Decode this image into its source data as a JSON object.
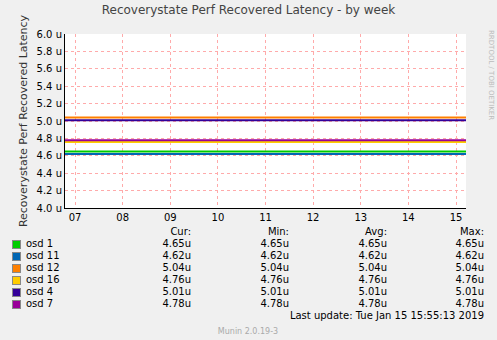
{
  "chart_data": {
    "type": "line",
    "title": "Recoverystate Perf Recovered Latency - by week",
    "y_label": "Recoverystate Perf Recovered Latency",
    "x": [
      6.79,
      15.21
    ],
    "xlim": [
      6.79,
      15.21
    ],
    "xticks": [
      {
        "value": 7,
        "label": "07"
      },
      {
        "value": 8,
        "label": "08"
      },
      {
        "value": 9,
        "label": "09"
      },
      {
        "value": 10,
        "label": "10"
      },
      {
        "value": 11,
        "label": "11"
      },
      {
        "value": 12,
        "label": "12"
      },
      {
        "value": 13,
        "label": "13"
      },
      {
        "value": 14,
        "label": "14"
      },
      {
        "value": 15,
        "label": "15"
      }
    ],
    "ylim": [
      4.0,
      6.0
    ],
    "yticks": [
      {
        "value": 4.0,
        "label": "4.0 u"
      },
      {
        "value": 4.2,
        "label": "4.2 u"
      },
      {
        "value": 4.4,
        "label": "4.4 u"
      },
      {
        "value": 4.6,
        "label": "4.6 u"
      },
      {
        "value": 4.8,
        "label": "4.8 u"
      },
      {
        "value": 5.0,
        "label": "5.0 u"
      },
      {
        "value": 5.2,
        "label": "5.2 u"
      },
      {
        "value": 5.4,
        "label": "5.4 u"
      },
      {
        "value": 5.6,
        "label": "5.6 u"
      },
      {
        "value": 5.8,
        "label": "5.8 u"
      },
      {
        "value": 6.0,
        "label": "6.0 u"
      }
    ],
    "grid": true,
    "stats_columns": [
      "Cur:",
      "Min:",
      "Avg:",
      "Max:"
    ],
    "series": [
      {
        "name": "osd 1",
        "color": "#00cc00",
        "values": [
          4.65,
          4.65
        ],
        "stats": [
          "4.65u",
          "4.65u",
          "4.65u",
          "4.65u"
        ]
      },
      {
        "name": "osd 11",
        "color": "#0066b3",
        "values": [
          4.62,
          4.62
        ],
        "stats": [
          "4.62u",
          "4.62u",
          "4.62u",
          "4.62u"
        ]
      },
      {
        "name": "osd 12",
        "color": "#ff8000",
        "values": [
          5.04,
          5.04
        ],
        "stats": [
          "5.04u",
          "5.04u",
          "5.04u",
          "5.04u"
        ]
      },
      {
        "name": "osd 16",
        "color": "#ffcc00",
        "values": [
          4.76,
          4.76
        ],
        "stats": [
          "4.76u",
          "4.76u",
          "4.76u",
          "4.76u"
        ]
      },
      {
        "name": "osd 4",
        "color": "#330099",
        "values": [
          5.01,
          5.01
        ],
        "stats": [
          "5.01u",
          "5.01u",
          "5.01u",
          "5.01u"
        ]
      },
      {
        "name": "osd 7",
        "color": "#990099",
        "values": [
          4.78,
          4.78
        ],
        "stats": [
          "4.78u",
          "4.78u",
          "4.78u",
          "4.78u"
        ]
      }
    ],
    "footer": "Last update:  Tue Jan 15 15:55:13 2019",
    "credit": "Munin 2.0.19-3",
    "side_text": "RRDTOOL / TOBI OETIKER"
  }
}
